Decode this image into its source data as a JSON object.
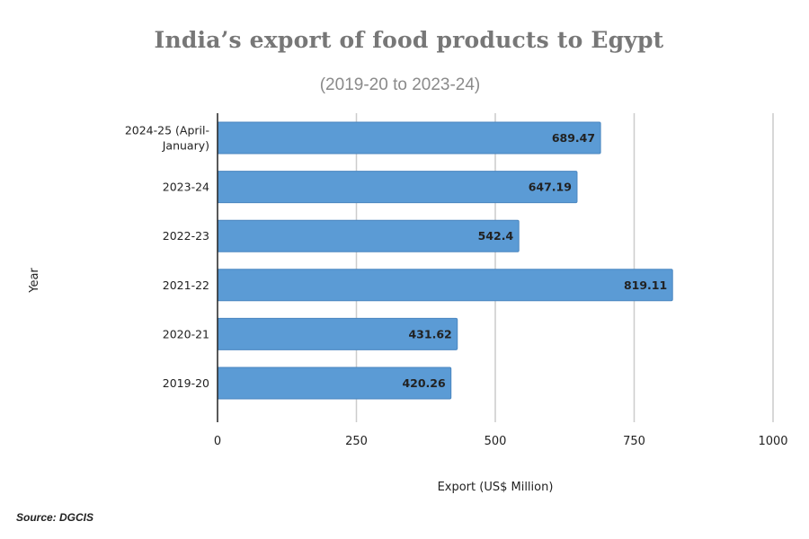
{
  "title": "India’s export of food products to Egypt",
  "subtitle": "(2019-20 to 2023-24)",
  "source": "Source: DGCIS",
  "colors": {
    "bar": "#5b9bd5",
    "bar_edge": "#4a86c0",
    "grid": "#cccccc",
    "axis": "#222222"
  },
  "chart_data": {
    "type": "bar",
    "orientation": "horizontal",
    "categories": [
      "2024-25 (April-January)",
      "2023-24",
      "2022-23",
      "2021-22",
      "2020-21",
      "2019-20"
    ],
    "category_lines": [
      [
        "2024-25 (April-",
        "January)"
      ],
      [
        "2023-24"
      ],
      [
        "2022-23"
      ],
      [
        "2021-22"
      ],
      [
        "2020-21"
      ],
      [
        "2019-20"
      ]
    ],
    "values": [
      689.47,
      647.19,
      542.4,
      819.11,
      431.62,
      420.26
    ],
    "value_labels": [
      "689.47",
      "647.19",
      "542.4",
      "819.11",
      "431.62",
      "420.26"
    ],
    "xlabel": "Export (US$ Million)",
    "ylabel": "Year",
    "xlim": [
      0,
      1000
    ],
    "xticks": [
      0,
      250,
      500,
      750,
      1000
    ],
    "grid": "vertical"
  }
}
